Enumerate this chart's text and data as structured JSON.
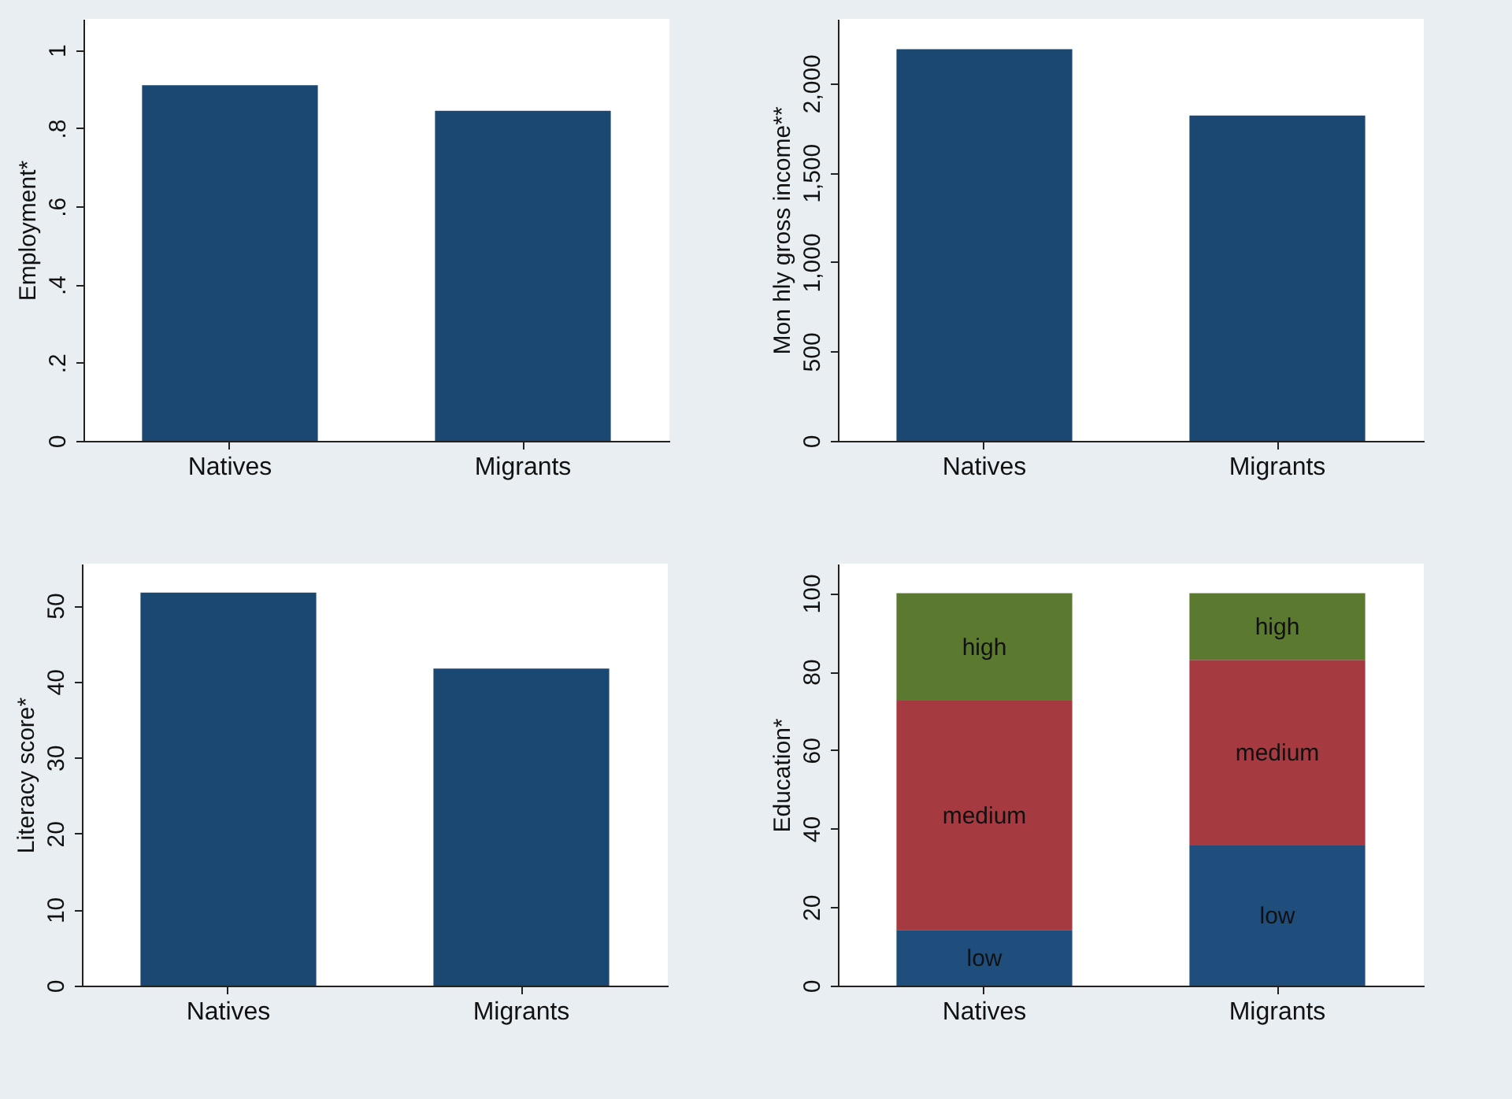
{
  "chart_data": [
    {
      "type": "bar",
      "ylabel": "Employment*",
      "categories": [
        "Natives",
        "Migrants"
      ],
      "values": [
        0.91,
        0.845
      ],
      "color": "#1b4872",
      "ylim": [
        0,
        1.08
      ],
      "yticks": [
        0,
        {
          "value": 0.2,
          "label": ".2"
        },
        {
          "value": 0.4,
          "label": ".4"
        },
        {
          "value": 0.6,
          "label": ".6"
        },
        {
          "value": 0.8,
          "label": ".8"
        },
        1
      ],
      "grid": false
    },
    {
      "type": "bar",
      "ylabel": "Mon hly gross income**",
      "categories": [
        "Natives",
        "Migrants"
      ],
      "values": [
        2190,
        1820
      ],
      "color": "#1b4872",
      "ylim": [
        0,
        2360
      ],
      "yticks": [
        0,
        500,
        {
          "value": 1000,
          "label": "1,000"
        },
        {
          "value": 1500,
          "label": "1,500"
        },
        {
          "value": 2000,
          "label": "2,000"
        }
      ],
      "grid": false
    },
    {
      "type": "bar",
      "ylabel": "Literacy score*",
      "categories": [
        "Natives",
        "Migrants"
      ],
      "values": [
        51.7,
        41.7
      ],
      "color": "#1b4872",
      "ylim": [
        0,
        55.5
      ],
      "yticks": [
        0,
        10,
        20,
        30,
        40,
        50
      ],
      "grid": false
    },
    {
      "type": "bar",
      "ylabel": "Education*",
      "categories": [
        "Natives",
        "Migrants"
      ],
      "stacked": true,
      "series": [
        {
          "name": "low",
          "color": "#1f4e7d",
          "values": [
            14.2,
            35.7
          ]
        },
        {
          "name": "medium",
          "color": "#a53a41",
          "values": [
            58.4,
            47.3
          ]
        },
        {
          "name": "high",
          "color": "#5b7a30",
          "values": [
            27.4,
            17.0
          ]
        }
      ],
      "ylim": [
        0,
        107.5
      ],
      "yticks": [
        0,
        20,
        40,
        60,
        80,
        100
      ],
      "grid": false
    }
  ]
}
